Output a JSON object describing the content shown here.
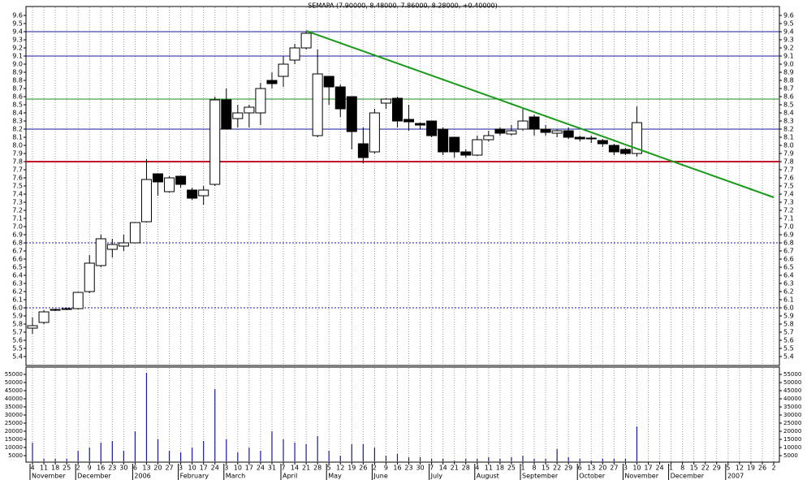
{
  "chart_data": {
    "type": "candlestick",
    "title": "SEMAPA (7.90000, 8.48000, 7.86000, 8.28000, +0.40000)",
    "categories": [
      "4",
      "11",
      "18",
      "25",
      "2",
      "9",
      "16",
      "23",
      "30",
      "6",
      "13",
      "20",
      "27",
      "3",
      "10",
      "17",
      "24",
      "3",
      "10",
      "17",
      "24",
      "31",
      "7",
      "14",
      "21",
      "28",
      "5",
      "12",
      "19",
      "26",
      "2",
      "9",
      "16",
      "23",
      "30",
      "7",
      "14",
      "21",
      "28",
      "4",
      "11",
      "18",
      "25",
      "1",
      "8",
      "15",
      "22",
      "29",
      "6",
      "13",
      "20",
      "27",
      "3",
      "10",
      "17",
      "24",
      "1",
      "8",
      "15",
      "22",
      "29",
      "5",
      "12",
      "19",
      "26",
      "2"
    ],
    "months": [
      "November",
      null,
      null,
      null,
      "December",
      null,
      null,
      null,
      null,
      "2006",
      null,
      null,
      null,
      "February",
      null,
      null,
      null,
      "March",
      null,
      null,
      null,
      null,
      "April",
      null,
      null,
      null,
      "May",
      null,
      null,
      null,
      "June",
      null,
      null,
      null,
      null,
      "July",
      null,
      null,
      null,
      "August",
      null,
      null,
      null,
      "September",
      null,
      null,
      null,
      null,
      "October",
      null,
      null,
      null,
      "November",
      null,
      null,
      null,
      "December",
      null,
      null,
      null,
      null,
      "2007",
      null,
      null,
      null,
      null
    ],
    "open": [
      5.75,
      5.82,
      5.97,
      5.98,
      5.99,
      6.2,
      6.52,
      6.72,
      6.76,
      6.8,
      7.06,
      7.65,
      7.43,
      7.62,
      7.45,
      7.38,
      7.52,
      8.56,
      8.33,
      8.4,
      8.4,
      8.8,
      8.85,
      9.05,
      9.2,
      8.12,
      8.85,
      8.72,
      8.6,
      8.02,
      7.92,
      8.52,
      8.58,
      8.32,
      8.27,
      8.3,
      8.2,
      8.1,
      7.92,
      7.88,
      8.07,
      8.2,
      8.14,
      8.2,
      8.35,
      8.2,
      8.15,
      8.18,
      8.1,
      8.09,
      8.06,
      8.0,
      7.95,
      7.9,
      null,
      null,
      null,
      null,
      null,
      null,
      null,
      null,
      null,
      null,
      null,
      null
    ],
    "high": [
      5.88,
      5.97,
      5.99,
      6.0,
      6.2,
      6.65,
      6.9,
      6.85,
      6.9,
      7.05,
      7.83,
      7.65,
      7.62,
      7.63,
      7.48,
      7.5,
      8.6,
      8.7,
      8.5,
      8.5,
      8.77,
      8.9,
      9.1,
      9.25,
      9.41,
      9.18,
      8.85,
      8.75,
      8.6,
      8.22,
      8.45,
      8.58,
      8.6,
      8.5,
      8.28,
      8.3,
      8.22,
      8.1,
      7.95,
      8.12,
      8.18,
      8.22,
      8.25,
      8.45,
      8.38,
      8.25,
      8.2,
      8.22,
      8.12,
      8.12,
      8.08,
      8.02,
      7.97,
      8.48,
      null,
      null,
      null,
      null,
      null,
      null,
      null,
      null,
      null,
      null,
      null,
      null
    ],
    "low": [
      5.68,
      5.8,
      5.96,
      5.97,
      5.98,
      6.18,
      6.5,
      6.62,
      6.7,
      6.8,
      7.05,
      7.38,
      7.42,
      7.48,
      7.33,
      7.27,
      7.5,
      8.2,
      8.22,
      8.22,
      8.25,
      8.7,
      8.72,
      9.0,
      9.18,
      8.1,
      8.5,
      8.35,
      7.95,
      7.78,
      7.9,
      8.45,
      8.22,
      8.18,
      8.2,
      8.1,
      7.88,
      7.85,
      7.85,
      7.87,
      8.05,
      8.12,
      8.12,
      8.18,
      8.12,
      8.12,
      8.1,
      8.08,
      8.05,
      8.03,
      7.98,
      7.88,
      7.88,
      7.86,
      null,
      null,
      null,
      null,
      null,
      null,
      null,
      null,
      null,
      null,
      null,
      null
    ],
    "close": [
      5.78,
      5.95,
      5.98,
      5.99,
      6.19,
      6.55,
      6.85,
      6.78,
      6.8,
      7.05,
      7.58,
      7.55,
      7.6,
      7.52,
      7.35,
      7.45,
      8.56,
      8.2,
      8.4,
      8.47,
      8.7,
      8.76,
      9.0,
      9.2,
      9.38,
      8.88,
      8.72,
      8.45,
      8.17,
      7.85,
      8.4,
      8.57,
      8.3,
      8.29,
      8.25,
      8.12,
      7.92,
      7.92,
      7.88,
      8.07,
      8.12,
      8.15,
      8.18,
      8.3,
      8.2,
      8.16,
      8.18,
      8.1,
      8.08,
      8.08,
      8.02,
      7.92,
      7.9,
      8.28,
      null,
      null,
      null,
      null,
      null,
      null,
      null,
      null,
      null,
      null,
      null,
      null
    ],
    "volume": [
      13000,
      3000,
      3000,
      3000,
      8000,
      10000,
      13000,
      14000,
      8000,
      20000,
      56000,
      15000,
      8000,
      7000,
      10000,
      14000,
      46000,
      15000,
      7000,
      10000,
      8000,
      20000,
      15000,
      13000,
      12000,
      17000,
      8000,
      5000,
      12000,
      12000,
      10000,
      5000,
      6000,
      4000,
      4000,
      3000,
      3000,
      2000,
      3000,
      3000,
      4000,
      3000,
      4000,
      5000,
      3000,
      3000,
      9000,
      4000,
      3000,
      2000,
      3000,
      3000,
      3000,
      23000,
      null,
      null,
      null,
      null,
      null,
      null,
      null,
      null,
      null,
      null,
      null,
      null
    ],
    "up_color": "#ffffff",
    "down_color": "#000000",
    "volume_color": "#1a1aa0",
    "ylim": [
      5.3,
      9.7
    ],
    "yticks": [
      5.4,
      5.5,
      5.6,
      5.7,
      5.8,
      5.9,
      {
        "value": 6,
        "label": "6.0"
      },
      6.1,
      6.2,
      6.3,
      6.4,
      6.5,
      6.6,
      6.7,
      6.8,
      6.9,
      {
        "value": 7,
        "label": "7.0"
      },
      7.1,
      7.2,
      7.3,
      7.4,
      7.5,
      7.6,
      7.7,
      7.8,
      7.9,
      {
        "value": 8,
        "label": "8.0"
      },
      8.1,
      8.2,
      8.3,
      8.4,
      8.5,
      8.6,
      8.7,
      8.8,
      8.9,
      {
        "value": 9,
        "label": "9.0"
      },
      9.1,
      9.2,
      9.3,
      9.4,
      9.5,
      9.6
    ],
    "volume_ylim": [
      0,
      60000
    ],
    "volume_ticks": [
      5000,
      10000,
      15000,
      20000,
      25000,
      30000,
      35000,
      40000,
      45000,
      50000,
      55000
    ],
    "levels": [
      {
        "value": 9.4,
        "color": "#1a1aa0",
        "style": "solid"
      },
      {
        "value": 9.1,
        "color": "#1a1aa0",
        "style": "solid"
      },
      {
        "value": 8.57,
        "color": "#1a8c1a",
        "style": "solid"
      },
      {
        "value": 8.2,
        "color": "#1a1aa0",
        "style": "solid"
      },
      {
        "value": 7.8,
        "color": "#c0102a",
        "style": "thick"
      },
      {
        "value": 6.8,
        "color": "#1a1aa0",
        "style": "dotted"
      },
      {
        "value": 6.0,
        "color": "#1a1aa0",
        "style": "dotted"
      }
    ],
    "trendline": {
      "x": [
        24,
        65
      ],
      "y": [
        9.41,
        7.36
      ],
      "color": "#1a9a1a"
    },
    "grid": true
  }
}
